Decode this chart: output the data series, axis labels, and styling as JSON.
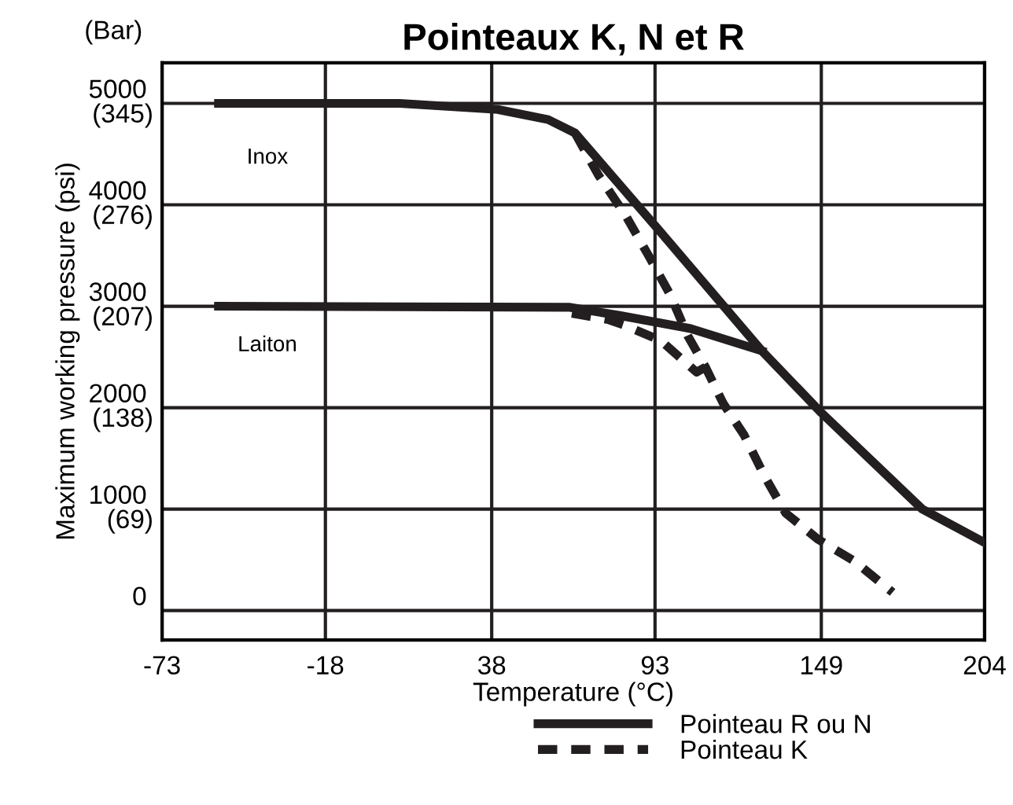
{
  "chart_data": {
    "type": "line",
    "title": "Pointeaux K, N et R",
    "xlabel": "Temperature (°C)",
    "ylabel": "Maximum working pressure (psi)",
    "annotations": [
      "Inox",
      "Laiton",
      "(Bar)"
    ],
    "series": [
      {
        "name": "Pointeau R ou N",
        "color": "#231f20",
        "line_style": "solid",
        "x": [
          -54,
          7,
          40,
          57,
          66,
          94,
          129,
          149,
          183,
          204
        ],
        "values": [
          5000,
          5000,
          4940,
          4840,
          4710,
          3760,
          2560,
          1950,
          1000,
          670
        ]
      },
      {
        "color": "#231f20",
        "line_style": "solid",
        "x": [
          -54,
          64,
          81,
          105,
          129
        ],
        "values": [
          3000,
          2990,
          2910,
          2780,
          2560
        ]
      },
      {
        "name": "Pointeau K",
        "color": "#231f20",
        "line_style": "dashed",
        "x": [
          66,
          74,
          83,
          91,
          98,
          104,
          110,
          116,
          123,
          130,
          137,
          148,
          160,
          173
        ],
        "values": [
          4710,
          4290,
          3900,
          3490,
          3120,
          2710,
          2400,
          2040,
          1730,
          1320,
          960,
          700,
          490,
          180
        ]
      },
      {
        "color": "#231f20",
        "line_style": "dashed",
        "x": [
          65,
          77,
          83,
          95,
          107,
          110
        ],
        "values": [
          2930,
          2870,
          2810,
          2660,
          2350,
          2400
        ]
      }
    ],
    "xlim": [
      -73,
      204
    ],
    "xticks": [
      -73,
      -18,
      38,
      93,
      149,
      204
    ],
    "ylim": [
      -290,
      5400
    ],
    "yticks": [
      0,
      1000,
      2000,
      3000,
      4000,
      5000
    ],
    "y2lim": [
      -20.0,
      372.3
    ],
    "y2ticks": [
      {
        "value": 68.95,
        "label": "(69)"
      },
      {
        "value": 137.9,
        "label": "(138)"
      },
      {
        "value": 206.8,
        "label": "(207)"
      },
      {
        "value": 275.8,
        "label": "(276)"
      },
      {
        "value": 344.7,
        "label": "(345)"
      }
    ],
    "grid": true,
    "legend": "bottom",
    "marker": "none"
  }
}
